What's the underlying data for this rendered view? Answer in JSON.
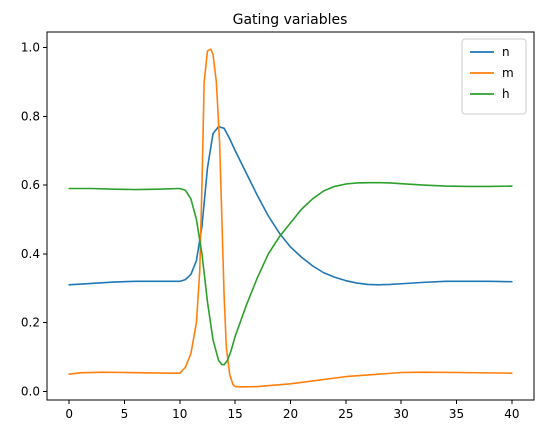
{
  "chart_data": {
    "type": "line",
    "title": "Gating variables",
    "xlabel": "",
    "ylabel": "",
    "xlim": [
      -2,
      42
    ],
    "ylim": [
      -0.025,
      1.045
    ],
    "xticks": [
      0,
      5,
      10,
      15,
      20,
      25,
      30,
      35,
      40
    ],
    "xtick_labels": [
      "0",
      "5",
      "10",
      "15",
      "20",
      "25",
      "30",
      "35",
      "40"
    ],
    "yticks": [
      0.0,
      0.2,
      0.4,
      0.6,
      0.8,
      1.0
    ],
    "ytick_labels": [
      "0.0",
      "0.2",
      "0.4",
      "0.6",
      "0.8",
      "1.0"
    ],
    "grid": false,
    "legend_position": "top-right",
    "series": [
      {
        "name": "n",
        "color": "#1f77b4",
        "x": [
          0,
          2,
          4,
          6,
          8,
          10,
          10.5,
          11,
          11.5,
          12,
          12.5,
          13,
          13.5,
          14,
          14.5,
          15,
          16,
          17,
          18,
          19,
          20,
          21,
          22,
          23,
          24,
          25,
          26,
          27,
          28,
          29,
          30,
          32,
          34,
          36,
          38,
          40
        ],
        "y": [
          0.31,
          0.314,
          0.318,
          0.32,
          0.32,
          0.32,
          0.325,
          0.34,
          0.38,
          0.48,
          0.65,
          0.75,
          0.77,
          0.765,
          0.735,
          0.7,
          0.635,
          0.57,
          0.51,
          0.46,
          0.42,
          0.39,
          0.365,
          0.345,
          0.332,
          0.322,
          0.315,
          0.311,
          0.31,
          0.311,
          0.313,
          0.317,
          0.32,
          0.32,
          0.32,
          0.319
        ]
      },
      {
        "name": "m",
        "color": "#ff7f0e",
        "x": [
          0,
          1,
          3,
          5,
          7,
          9,
          10,
          10.5,
          11,
          11.5,
          11.8,
          12,
          12.2,
          12.5,
          12.8,
          13,
          13.3,
          13.6,
          13.8,
          14,
          14.2,
          14.5,
          14.8,
          15,
          15.5,
          17,
          20,
          25,
          30,
          32,
          35,
          40
        ],
        "y": [
          0.05,
          0.054,
          0.056,
          0.055,
          0.054,
          0.053,
          0.053,
          0.07,
          0.11,
          0.2,
          0.35,
          0.6,
          0.9,
          0.99,
          0.995,
          0.98,
          0.9,
          0.72,
          0.5,
          0.28,
          0.13,
          0.05,
          0.02,
          0.014,
          0.013,
          0.014,
          0.022,
          0.043,
          0.055,
          0.056,
          0.055,
          0.053
        ]
      },
      {
        "name": "h",
        "color": "#2ca02c",
        "x": [
          0,
          2,
          4,
          6,
          8,
          10,
          10.5,
          11,
          11.5,
          12,
          12.5,
          13,
          13.5,
          13.8,
          14,
          14.3,
          14.6,
          15,
          16,
          17,
          18,
          19,
          20,
          21,
          22,
          23,
          24,
          25,
          26,
          27,
          28,
          29,
          30,
          32,
          34,
          36,
          38,
          40
        ],
        "y": [
          0.59,
          0.59,
          0.588,
          0.587,
          0.588,
          0.59,
          0.585,
          0.56,
          0.5,
          0.4,
          0.26,
          0.15,
          0.09,
          0.078,
          0.078,
          0.09,
          0.115,
          0.16,
          0.25,
          0.33,
          0.4,
          0.45,
          0.49,
          0.53,
          0.56,
          0.583,
          0.596,
          0.603,
          0.606,
          0.607,
          0.607,
          0.606,
          0.604,
          0.6,
          0.597,
          0.596,
          0.596,
          0.597
        ]
      }
    ]
  }
}
